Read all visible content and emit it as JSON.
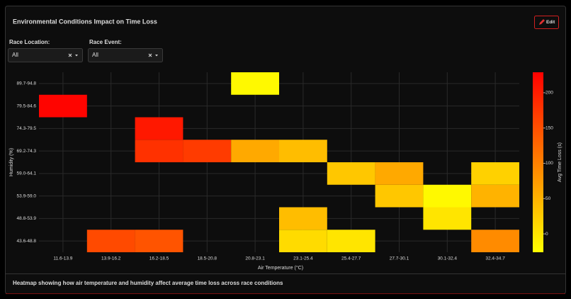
{
  "panel": {
    "title": "Environmental Conditions Impact on Time Loss",
    "edit_label": "Edit",
    "filters": [
      {
        "label": "Race Location:",
        "value": "All"
      },
      {
        "label": "Race Event:",
        "value": "All"
      }
    ],
    "caption": "Heatmap showing how air temperature and humidity affect average time loss across race conditions"
  },
  "chart_data": {
    "type": "heatmap",
    "x_label": "Air Temperature (°C)",
    "y_label": "Humidity (%)",
    "colorbar_title": "Avg Time Loss (s)",
    "x": [
      "11.6-13.9",
      "13.9-16.2",
      "16.2-18.5",
      "18.5-20.8",
      "20.8-23.1",
      "23.1-25.4",
      "25.4-27.7",
      "27.7-30.1",
      "30.1-32.4",
      "32.4-34.7"
    ],
    "y": [
      "43.6-48.8",
      "48.8-53.9",
      "53.9-59.0",
      "59.0-64.1",
      "69.2-74.3",
      "74.3-79.5",
      "79.5-84.6",
      "89.7-94.8"
    ],
    "z": [
      [
        null,
        155,
        145,
        null,
        null,
        10,
        0,
        null,
        null,
        90
      ],
      [
        null,
        null,
        null,
        null,
        null,
        40,
        null,
        null,
        0,
        null
      ],
      [
        null,
        null,
        null,
        null,
        null,
        null,
        null,
        30,
        -20,
        50
      ],
      [
        null,
        null,
        null,
        null,
        null,
        null,
        30,
        60,
        null,
        20
      ],
      [
        null,
        null,
        180,
        170,
        60,
        40,
        null,
        null,
        null,
        null
      ],
      [
        null,
        null,
        205,
        null,
        null,
        null,
        null,
        null,
        null,
        null
      ],
      [
        225,
        null,
        null,
        null,
        null,
        null,
        null,
        null,
        null,
        null
      ],
      [
        null,
        null,
        null,
        null,
        -20,
        null,
        null,
        null,
        null,
        null
      ]
    ],
    "zlim": [
      -26,
      229
    ],
    "colorbar_ticks": [
      0,
      50,
      100,
      150,
      200
    ],
    "colorscale": [
      "#ffff00",
      "#ff0000"
    ],
    "grid": true
  }
}
